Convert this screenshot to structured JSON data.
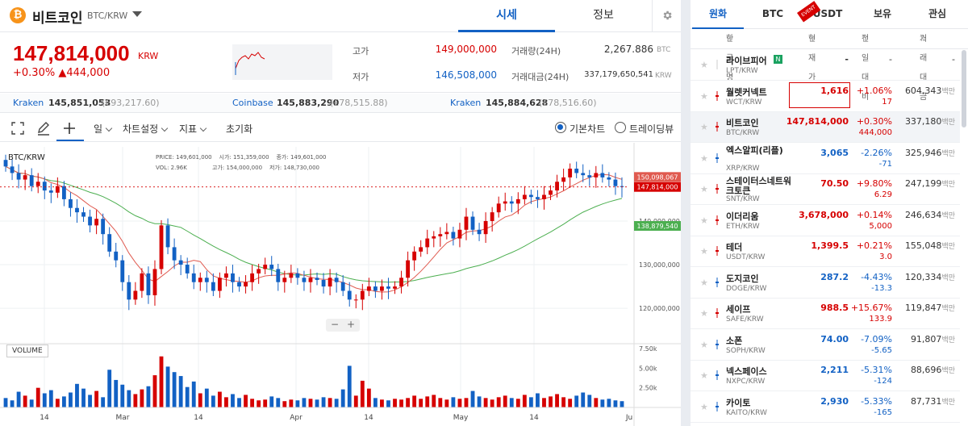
{
  "header": {
    "coin_name": "비트코인",
    "pair": "BTC/KRW",
    "tabs": [
      "시세",
      "정보"
    ]
  },
  "summary": {
    "price": "147,814,000",
    "unit": "KRW",
    "change_rate": "+0.30%",
    "change_amount": "▲444,000",
    "high_label": "고가",
    "high": "149,000,000",
    "low_label": "저가",
    "low": "146,508,000",
    "volume_label": "거래량(24H)",
    "volume": "2,267.886",
    "volume_unit": "BTC",
    "amount_label": "거래대금(24H)",
    "amount": "337,179,650,541",
    "amount_unit": "KRW"
  },
  "exchanges": [
    {
      "name": "Kraken",
      "price": "145,851,053",
      "fx": "(€93,217.60)"
    },
    {
      "name": "Coinbase",
      "price": "145,883,290",
      "fx": "(£78,515.88)"
    },
    {
      "name": "Kraken",
      "price": "145,884,628",
      "fx": "(£78,516.60)"
    }
  ],
  "toolbar": {
    "interval": "일",
    "chart_settings": "차트설정",
    "indicators": "지표",
    "reset": "초기화",
    "basic_chart": "기본차트",
    "tradingview": "트레이딩뷰"
  },
  "ohlc": {
    "pair": "BTC/KRW",
    "price_label": "PRICE:",
    "price": "149,601,000",
    "vol_label": "VOL:",
    "vol": "2.96K",
    "open_label": "시가:",
    "open": "151,359,000",
    "high_label": "고가:",
    "high": "154,000,000",
    "close_label": "종가:",
    "close": "149,601,000",
    "low_label": "저가:",
    "low": "148,730,000"
  },
  "chart_data": {
    "type": "candlestick",
    "y_ticks": [
      "140,000,000",
      "130,000,000",
      "120,000,000"
    ],
    "volume_ticks": [
      "7.50k",
      "5.00k",
      "2.50k"
    ],
    "x_ticks": [
      "14",
      "Mar",
      "14",
      "Apr",
      "14",
      "May",
      "14",
      "Ju"
    ],
    "price_labels": {
      "ma_short": "150,098,067",
      "current": "147,814,000",
      "ma_long": "138,879,540"
    },
    "volume_label": "VOLUME",
    "ylim": [
      113000000,
      157000000
    ],
    "closes": [
      152.5,
      151,
      149.5,
      150.5,
      148,
      149,
      147,
      146.5,
      148,
      145,
      143,
      142,
      141,
      139,
      140.5,
      137,
      133,
      131,
      126,
      122,
      124,
      128,
      123,
      129,
      139,
      134,
      131,
      130,
      128,
      126,
      127,
      126,
      124,
      127,
      128,
      126,
      125,
      126,
      128,
      129,
      130,
      129,
      126,
      127,
      128,
      127,
      126,
      127,
      126.5,
      125,
      127,
      126,
      124,
      122,
      122,
      124,
      125,
      124,
      125,
      124.5,
      125,
      127,
      131,
      133,
      134,
      136,
      136.5,
      137,
      137.5,
      136,
      138,
      141,
      138,
      137,
      140,
      142,
      144,
      144.5,
      144,
      145,
      146,
      145.5,
      145,
      146,
      147,
      149,
      150,
      152,
      151,
      150.5,
      150,
      151,
      150,
      149.5,
      148,
      147.8
    ],
    "volumes": [
      1.2,
      0.9,
      2.0,
      1.5,
      1.0,
      2.5,
      1.8,
      2.2,
      1.1,
      1.4,
      1.9,
      3.0,
      2.4,
      1.6,
      2.1,
      1.3,
      4.8,
      3.5,
      2.9,
      2.2,
      1.7,
      2.3,
      2.7,
      4.1,
      6.5,
      5.2,
      4.5,
      4.0,
      2.6,
      3.3,
      1.8,
      2.4,
      1.5,
      2.0,
      1.3,
      1.7,
      1.2,
      1.6,
      1.1,
      0.9,
      1.0,
      1.4,
      1.2,
      0.8,
      1.0,
      0.9,
      1.2,
      1.1,
      1.0,
      1.3,
      1.2,
      1.1,
      2.3,
      5.3,
      1.5,
      3.4,
      2.4,
      1.2,
      1.0,
      0.9,
      1.1,
      1.0,
      1.2,
      1.5,
      1.1,
      1.4,
      1.6,
      1.2,
      1.0,
      1.3,
      1.1,
      1.2,
      2.1,
      1.4,
      1.2,
      1.0,
      1.3,
      1.5,
      1.2,
      1.1,
      1.6,
      1.3,
      1.8,
      1.2,
      1.4,
      1.7,
      1.3,
      1.1,
      1.5,
      1.9,
      1.6,
      1.2,
      1.0,
      1.1,
      0.9,
      0.8,
      0.6
    ]
  },
  "market_tabs": [
    "원화",
    "BTC",
    "USDT",
    "보유",
    "관심"
  ],
  "event_badge": "EVENT",
  "market_headers": [
    "한글명",
    "현재가",
    "전일대비",
    "거래대금"
  ],
  "markets": [
    {
      "name": "라이브피어",
      "badge": "N",
      "symbol": "LPT/KRW",
      "price": "-",
      "change": "-",
      "change_amt": "",
      "volume": "-",
      "dir": "flat"
    },
    {
      "name": "월렛커넥트",
      "badge": "",
      "symbol": "WCT/KRW",
      "price": "1,616",
      "change": "+1.06%",
      "change_amt": "17",
      "volume": "604,343",
      "dir": "up",
      "boxed": true
    },
    {
      "name": "비트코인",
      "badge": "",
      "symbol": "BTC/KRW",
      "price": "147,814,000",
      "change": "+0.30%",
      "change_amt": "444,000",
      "volume": "337,180",
      "dir": "up",
      "selected": true
    },
    {
      "name": "엑스알피(리플)",
      "badge": "",
      "symbol": "XRP/KRW",
      "price": "3,065",
      "change": "-2.26%",
      "change_amt": "-71",
      "volume": "325,946",
      "dir": "dn"
    },
    {
      "name": "스테이터스네트워크토큰",
      "badge": "",
      "symbol": "SNT/KRW",
      "price": "70.50",
      "change": "+9.80%",
      "change_amt": "6.29",
      "volume": "247,199",
      "dir": "up"
    },
    {
      "name": "이더리움",
      "badge": "",
      "symbol": "ETH/KRW",
      "price": "3,678,000",
      "change": "+0.14%",
      "change_amt": "5,000",
      "volume": "246,634",
      "dir": "up"
    },
    {
      "name": "테더",
      "badge": "",
      "symbol": "USDT/KRW",
      "price": "1,399.5",
      "change": "+0.21%",
      "change_amt": "3.0",
      "volume": "155,048",
      "dir": "up"
    },
    {
      "name": "도지코인",
      "badge": "",
      "symbol": "DOGE/KRW",
      "price": "287.2",
      "change": "-4.43%",
      "change_amt": "-13.3",
      "volume": "120,334",
      "dir": "dn"
    },
    {
      "name": "세이프",
      "badge": "",
      "symbol": "SAFE/KRW",
      "price": "988.5",
      "change": "+15.67%",
      "change_amt": "133.9",
      "volume": "119,847",
      "dir": "up"
    },
    {
      "name": "소폰",
      "badge": "",
      "symbol": "SOPH/KRW",
      "price": "74.00",
      "change": "-7.09%",
      "change_amt": "-5.65",
      "volume": "91,807",
      "dir": "dn"
    },
    {
      "name": "넥스페이스",
      "badge": "",
      "symbol": "NXPC/KRW",
      "price": "2,211",
      "change": "-5.31%",
      "change_amt": "-124",
      "volume": "88,696",
      "dir": "dn"
    },
    {
      "name": "카이토",
      "badge": "",
      "symbol": "KAITO/KRW",
      "price": "2,930",
      "change": "-5.33%",
      "change_amt": "-165",
      "volume": "87,731",
      "dir": "dn"
    }
  ],
  "volume_unit": "백만"
}
